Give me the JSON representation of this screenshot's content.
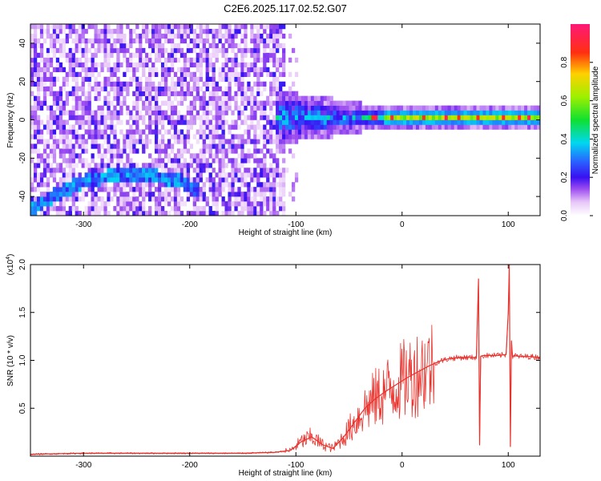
{
  "title": "C2E6.2025.117.02.52.G07",
  "chart_data": [
    {
      "type": "heatmap",
      "xlabel": "Height of straight line (km)",
      "ylabel": "Frequency (Hz)",
      "xlim": [
        -350,
        130
      ],
      "ylim": [
        -50,
        50
      ],
      "x_ticks": [
        "-300",
        "-200",
        "-100",
        "0",
        "100"
      ],
      "y_ticks": [
        "40",
        "20",
        "0",
        "-20",
        "-40"
      ],
      "colorbar": {
        "label": "Normalized spectral amplitude",
        "ticks": [
          "0.0",
          "0.2",
          "0.4",
          "0.6",
          "0.8"
        ],
        "range": [
          0,
          1
        ]
      },
      "features": [
        {
          "name": "broadband noise",
          "x_range": [
            -350,
            -110
          ],
          "y_range": [
            -50,
            50
          ],
          "level": 0.1
        },
        {
          "name": "signal band",
          "x_range": [
            -120,
            130
          ],
          "y_center": 0,
          "level": 0.5
        },
        {
          "name": "low-frequency trace",
          "x": [
            -350,
            -330,
            -300,
            -270,
            -240,
            -210,
            -195
          ],
          "y": [
            -48,
            -41,
            -33,
            -30,
            -30,
            -33,
            -38
          ],
          "level": 0.3
        }
      ]
    },
    {
      "type": "line",
      "xlabel": "Height of straight line (km)",
      "ylabel": "SNR (10 * v/v)",
      "y_multiplier": "(x10",
      "y_multiplier_exp": "4",
      "xlim": [
        -350,
        130
      ],
      "ylim": [
        0,
        2.0
      ],
      "x_ticks": [
        "-300",
        "-200",
        "-100",
        "0",
        "100"
      ],
      "y_ticks": [
        "2.0",
        "1.5",
        "1.0",
        "0.5"
      ],
      "color": "#e8322c",
      "series": [
        {
          "x": [
            -350,
            -300,
            -250,
            -200,
            -150,
            -120,
            -105,
            -95,
            -85,
            -75,
            -65,
            -55,
            -45,
            -35,
            -25,
            -15,
            -5,
            5,
            15,
            25,
            35,
            45,
            55,
            65,
            70,
            72,
            73,
            74,
            76,
            80,
            90,
            98,
            100,
            101,
            102,
            103,
            104,
            106,
            110,
            120,
            130
          ],
          "y": [
            0.02,
            0.03,
            0.03,
            0.03,
            0.03,
            0.04,
            0.06,
            0.15,
            0.2,
            0.12,
            0.08,
            0.2,
            0.35,
            0.5,
            0.6,
            0.68,
            0.75,
            0.82,
            0.88,
            0.94,
            0.99,
            1.02,
            1.03,
            1.03,
            1.03,
            1.85,
            0.12,
            1.04,
            1.05,
            1.05,
            1.05,
            1.06,
            1.5,
            2.0,
            0.1,
            1.2,
            1.04,
            1.05,
            1.04,
            1.04,
            1.03
          ]
        }
      ]
    }
  ]
}
